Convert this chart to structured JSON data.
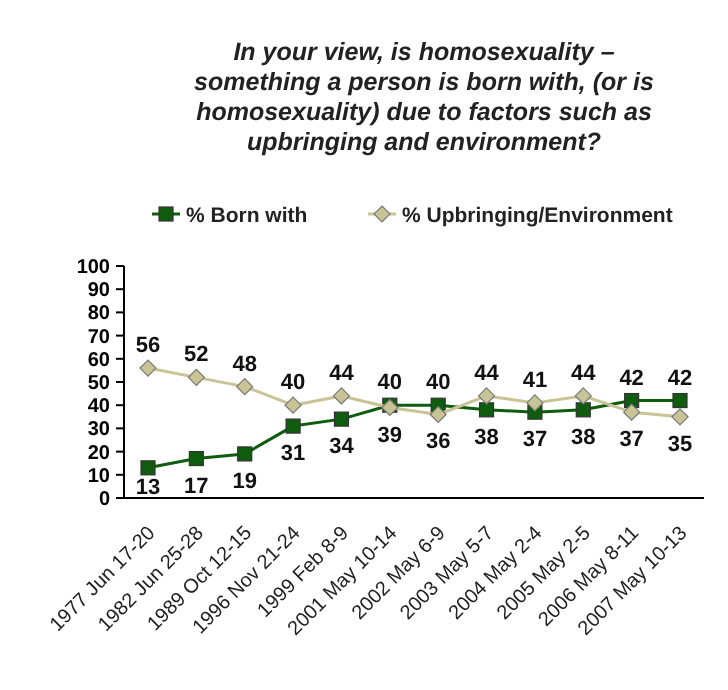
{
  "chart_data": {
    "type": "line",
    "title": "In your view, is homosexuality – something a person is born with, (or is homosexuality) due to factors such as upbringing and environment?",
    "categories": [
      "1977 Jun 17-20",
      "1982 Jun 25-28",
      "1989 Oct 12-15",
      "1996 Nov 21-24",
      "1999 Feb 8-9",
      "2001 May 10-14",
      "2002 May 6-9",
      "2003 May 5-7",
      "2004 May 2-4",
      "2005 May 2-5",
      "2006 May 8-11",
      "2007 May 10-13"
    ],
    "series": [
      {
        "name": "% Born with",
        "color": "#0f5c0f",
        "marker": "square",
        "values": [
          13,
          17,
          19,
          31,
          34,
          40,
          40,
          38,
          37,
          38,
          42,
          42
        ]
      },
      {
        "name": "% Upbringing/Environment",
        "color": "#c8c496",
        "marker": "diamond",
        "values": [
          56,
          52,
          48,
          40,
          44,
          39,
          36,
          44,
          41,
          44,
          37,
          35
        ]
      }
    ],
    "ylim": [
      0,
      100
    ],
    "yticks": [
      0,
      10,
      20,
      30,
      40,
      50,
      60,
      70,
      80,
      90,
      100
    ],
    "grid": false,
    "legend": "top",
    "data_labels": true
  }
}
